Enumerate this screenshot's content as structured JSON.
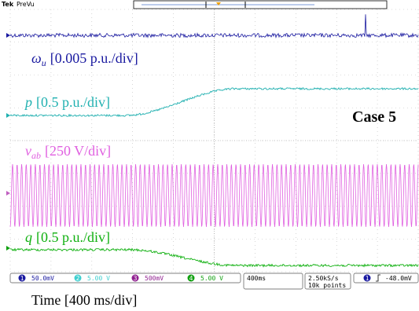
{
  "header": {
    "brand": "Tek",
    "mode": "PreVu"
  },
  "traces": [
    {
      "symbol": "ω",
      "subscript": "u",
      "scale": "[0.005 p.u./div]"
    },
    {
      "symbol": "p",
      "scale": "[0.5 p.u./div]"
    },
    {
      "symbol": "v",
      "subscript": "ab",
      "scale": "[250 V/div]"
    },
    {
      "symbol": "q",
      "scale": "[0.5 p.u./div]"
    }
  ],
  "annotation": "Case 5",
  "status": {
    "channels": [
      {
        "number": "1",
        "scale": "50.0mV"
      },
      {
        "number": "2",
        "scale": "5.00 V"
      },
      {
        "number": "3",
        "scale": "500mV"
      },
      {
        "number": "4",
        "scale": "5.00 V"
      }
    ],
    "timebase": "400ms",
    "sample_rate": "2.50kS/s",
    "record_length": "10k points",
    "trigger": {
      "source": "1",
      "level": "-48.0mV"
    }
  },
  "caption": "Time [400 ms/div]"
}
